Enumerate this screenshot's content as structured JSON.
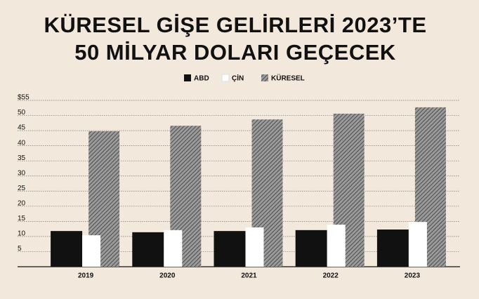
{
  "chart_data": {
    "type": "bar",
    "title": [
      "KÜRESEL GİŞE GELİRLERİ 2023’TE",
      "50 MİLYAR DOLARI GEÇECEK"
    ],
    "categories": [
      "2019",
      "2020",
      "2021",
      "2022",
      "2023"
    ],
    "series": [
      {
        "name": "ABD",
        "color": "#111111",
        "values": [
          11.8,
          11.4,
          11.8,
          12.1,
          12.3
        ]
      },
      {
        "name": "ÇİN",
        "color": "#ffffff",
        "values": [
          10.4,
          12.1,
          13.0,
          13.9,
          14.8
        ]
      },
      {
        "name": "KÜRESEL",
        "color": "#8a8a8a",
        "hatch": true,
        "values": [
          44.8,
          46.6,
          48.7,
          50.6,
          52.7
        ]
      }
    ],
    "ylim": [
      0,
      55
    ],
    "yticks": [
      5,
      10,
      15,
      20,
      25,
      30,
      35,
      40,
      45,
      50,
      {
        "value": 55,
        "label": "$55"
      }
    ],
    "grid": true
  }
}
